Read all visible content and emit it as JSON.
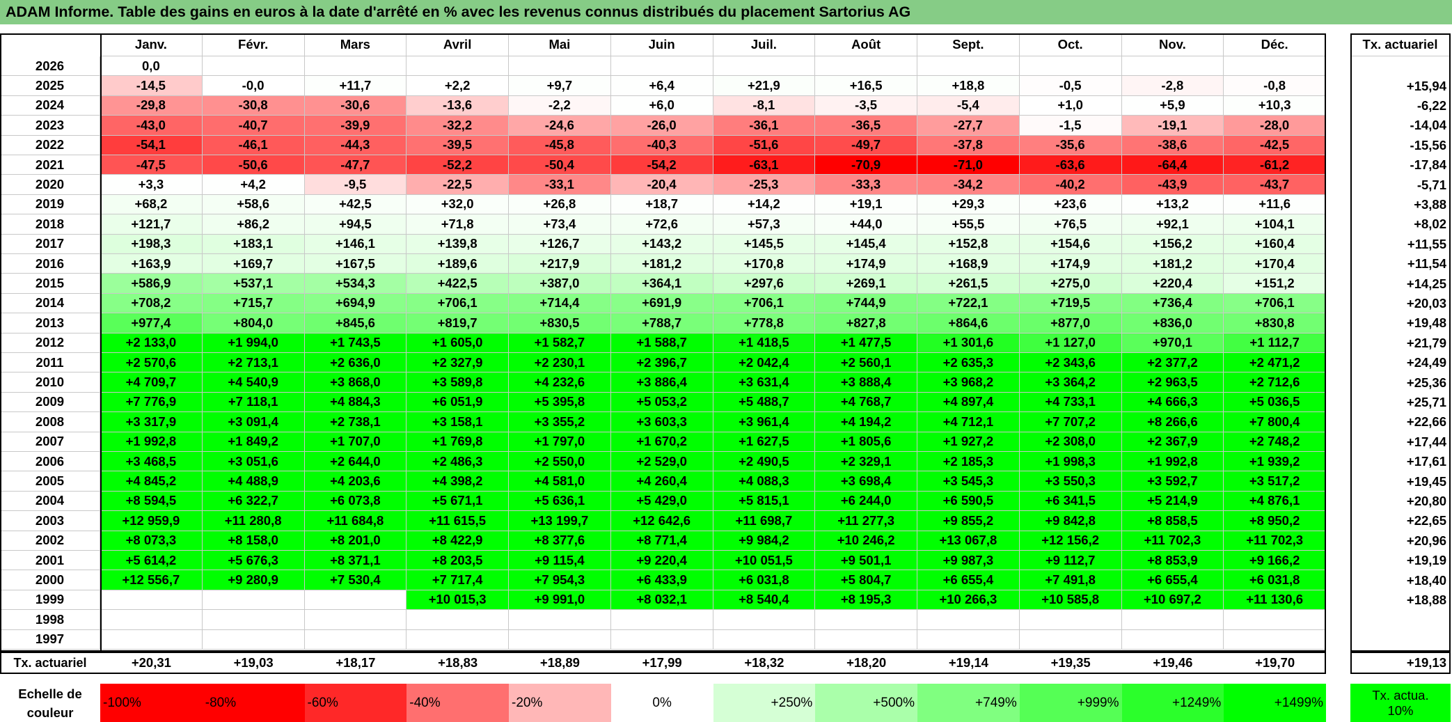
{
  "title": "ADAM Informe. Table des gains en euros à la date d'arrêté en % avec les revenus connus distribués du placement Sartorius AG",
  "table": {
    "months": [
      "Janv.",
      "Févr.",
      "Mars",
      "Avril",
      "Mai",
      "Juin",
      "Juil.",
      "Août",
      "Sept.",
      "Oct.",
      "Nov.",
      "Déc."
    ],
    "rate_header": "Tx. actuariel",
    "rows": [
      {
        "year": "2026",
        "values": [
          "0,0",
          null,
          null,
          null,
          null,
          null,
          null,
          null,
          null,
          null,
          null,
          null
        ],
        "rate": null
      },
      {
        "year": "2025",
        "values": [
          "-14,5",
          "-0,0",
          "+11,7",
          "+2,2",
          "+9,7",
          "+6,4",
          "+21,9",
          "+16,5",
          "+18,8",
          "-0,5",
          "-2,8",
          "-0,8"
        ],
        "rate": "+15,94"
      },
      {
        "year": "2024",
        "values": [
          "-29,8",
          "-30,8",
          "-30,6",
          "-13,6",
          "-2,2",
          "+6,0",
          "-8,1",
          "-3,5",
          "-5,4",
          "+1,0",
          "+5,9",
          "+10,3"
        ],
        "rate": "-6,22"
      },
      {
        "year": "2023",
        "values": [
          "-43,0",
          "-40,7",
          "-39,9",
          "-32,2",
          "-24,6",
          "-26,0",
          "-36,1",
          "-36,5",
          "-27,7",
          "-1,5",
          "-19,1",
          "-28,0"
        ],
        "rate": "-14,04"
      },
      {
        "year": "2022",
        "values": [
          "-54,1",
          "-46,1",
          "-44,3",
          "-39,5",
          "-45,8",
          "-40,3",
          "-51,6",
          "-49,7",
          "-37,8",
          "-35,6",
          "-38,6",
          "-42,5"
        ],
        "rate": "-15,56"
      },
      {
        "year": "2021",
        "values": [
          "-47,5",
          "-50,6",
          "-47,7",
          "-52,2",
          "-50,4",
          "-54,2",
          "-63,1",
          "-70,9",
          "-71,0",
          "-63,6",
          "-64,4",
          "-61,2"
        ],
        "rate": "-17,84"
      },
      {
        "year": "2020",
        "values": [
          "+3,3",
          "+4,2",
          "-9,5",
          "-22,5",
          "-33,1",
          "-20,4",
          "-25,3",
          "-33,3",
          "-34,2",
          "-40,2",
          "-43,9",
          "-43,7"
        ],
        "rate": "-5,71"
      },
      {
        "year": "2019",
        "values": [
          "+68,2",
          "+58,6",
          "+42,5",
          "+32,0",
          "+26,8",
          "+18,7",
          "+14,2",
          "+19,1",
          "+29,3",
          "+23,6",
          "+13,2",
          "+11,6"
        ],
        "rate": "+3,88"
      },
      {
        "year": "2018",
        "values": [
          "+121,7",
          "+86,2",
          "+94,5",
          "+71,8",
          "+73,4",
          "+72,6",
          "+57,3",
          "+44,0",
          "+55,5",
          "+76,5",
          "+92,1",
          "+104,1"
        ],
        "rate": "+8,02"
      },
      {
        "year": "2017",
        "values": [
          "+198,3",
          "+183,1",
          "+146,1",
          "+139,8",
          "+126,7",
          "+143,2",
          "+145,5",
          "+145,4",
          "+152,8",
          "+154,6",
          "+156,2",
          "+160,4"
        ],
        "rate": "+11,55"
      },
      {
        "year": "2016",
        "values": [
          "+163,9",
          "+169,7",
          "+167,5",
          "+189,6",
          "+217,9",
          "+181,2",
          "+170,8",
          "+174,9",
          "+168,9",
          "+174,9",
          "+181,2",
          "+170,4"
        ],
        "rate": "+11,54"
      },
      {
        "year": "2015",
        "values": [
          "+586,9",
          "+537,1",
          "+534,3",
          "+422,5",
          "+387,0",
          "+364,1",
          "+297,6",
          "+269,1",
          "+261,5",
          "+275,0",
          "+220,4",
          "+151,2"
        ],
        "rate": "+14,25"
      },
      {
        "year": "2014",
        "values": [
          "+708,2",
          "+715,7",
          "+694,9",
          "+706,1",
          "+714,4",
          "+691,9",
          "+706,1",
          "+744,9",
          "+722,1",
          "+719,5",
          "+736,4",
          "+706,1"
        ],
        "rate": "+20,03"
      },
      {
        "year": "2013",
        "values": [
          "+977,4",
          "+804,0",
          "+845,6",
          "+819,7",
          "+830,5",
          "+788,7",
          "+778,8",
          "+827,8",
          "+864,6",
          "+877,0",
          "+836,0",
          "+830,8"
        ],
        "rate": "+19,48"
      },
      {
        "year": "2012",
        "values": [
          "+2 133,0",
          "+1 994,0",
          "+1 743,5",
          "+1 605,0",
          "+1 582,7",
          "+1 588,7",
          "+1 418,5",
          "+1 477,5",
          "+1 301,6",
          "+1 127,0",
          "+970,1",
          "+1 112,7"
        ],
        "rate": "+21,79"
      },
      {
        "year": "2011",
        "values": [
          "+2 570,6",
          "+2 713,1",
          "+2 636,0",
          "+2 327,9",
          "+2 230,1",
          "+2 396,7",
          "+2 042,4",
          "+2 560,1",
          "+2 635,3",
          "+2 343,6",
          "+2 377,2",
          "+2 471,2"
        ],
        "rate": "+24,49"
      },
      {
        "year": "2010",
        "values": [
          "+4 709,7",
          "+4 540,9",
          "+3 868,0",
          "+3 589,8",
          "+4 232,6",
          "+3 886,4",
          "+3 631,4",
          "+3 888,4",
          "+3 968,2",
          "+3 364,2",
          "+2 963,5",
          "+2 712,6"
        ],
        "rate": "+25,36"
      },
      {
        "year": "2009",
        "values": [
          "+7 776,9",
          "+7 118,1",
          "+4 884,3",
          "+6 051,9",
          "+5 395,8",
          "+5 053,2",
          "+5 488,7",
          "+4 768,7",
          "+4 897,4",
          "+4 733,1",
          "+4 666,3",
          "+5 036,5"
        ],
        "rate": "+25,71"
      },
      {
        "year": "2008",
        "values": [
          "+3 317,9",
          "+3 091,4",
          "+2 738,1",
          "+3 158,1",
          "+3 355,2",
          "+3 603,3",
          "+3 961,4",
          "+4 194,2",
          "+4 712,1",
          "+7 707,2",
          "+8 266,6",
          "+7 800,4"
        ],
        "rate": "+22,66"
      },
      {
        "year": "2007",
        "values": [
          "+1 992,8",
          "+1 849,2",
          "+1 707,0",
          "+1 769,8",
          "+1 797,0",
          "+1 670,2",
          "+1 627,5",
          "+1 805,6",
          "+1 927,2",
          "+2 308,0",
          "+2 367,9",
          "+2 748,2"
        ],
        "rate": "+17,44"
      },
      {
        "year": "2006",
        "values": [
          "+3 468,5",
          "+3 051,6",
          "+2 644,0",
          "+2 486,3",
          "+2 550,0",
          "+2 529,0",
          "+2 490,5",
          "+2 329,1",
          "+2 185,3",
          "+1 998,3",
          "+1 992,8",
          "+1 939,2"
        ],
        "rate": "+17,61"
      },
      {
        "year": "2005",
        "values": [
          "+4 845,2",
          "+4 488,9",
          "+4 203,6",
          "+4 398,2",
          "+4 581,0",
          "+4 260,4",
          "+4 088,3",
          "+3 698,4",
          "+3 545,3",
          "+3 550,3",
          "+3 592,7",
          "+3 517,2"
        ],
        "rate": "+19,45"
      },
      {
        "year": "2004",
        "values": [
          "+8 594,5",
          "+6 322,7",
          "+6 073,8",
          "+5 671,1",
          "+5 636,1",
          "+5 429,0",
          "+5 815,1",
          "+6 244,0",
          "+6 590,5",
          "+6 341,5",
          "+5 214,9",
          "+4 876,1"
        ],
        "rate": "+20,80"
      },
      {
        "year": "2003",
        "values": [
          "+12 959,9",
          "+11 280,8",
          "+11 684,8",
          "+11 615,5",
          "+13 199,7",
          "+12 642,6",
          "+11 698,7",
          "+11 277,3",
          "+9 855,2",
          "+9 842,8",
          "+8 858,5",
          "+8 950,2"
        ],
        "rate": "+22,65"
      },
      {
        "year": "2002",
        "values": [
          "+8 073,3",
          "+8 158,0",
          "+8 201,0",
          "+8 422,9",
          "+8 377,6",
          "+8 771,4",
          "+9 984,2",
          "+10 246,2",
          "+13 067,8",
          "+12 156,2",
          "+11 702,3",
          "+11 702,3"
        ],
        "rate": "+20,96"
      },
      {
        "year": "2001",
        "values": [
          "+5 614,2",
          "+5 676,3",
          "+8 371,1",
          "+8 203,5",
          "+9 115,4",
          "+9 220,4",
          "+10 051,5",
          "+9 501,1",
          "+9 987,3",
          "+9 112,7",
          "+8 853,9",
          "+9 166,2"
        ],
        "rate": "+19,19"
      },
      {
        "year": "2000",
        "values": [
          "+12 556,7",
          "+9 280,9",
          "+7 530,4",
          "+7 717,4",
          "+7 954,3",
          "+6 433,9",
          "+6 031,8",
          "+5 804,7",
          "+6 655,4",
          "+7 491,8",
          "+6 655,4",
          "+6 031,8"
        ],
        "rate": "+18,40"
      },
      {
        "year": "1999",
        "values": [
          null,
          null,
          null,
          "+10 015,3",
          "+9 991,0",
          "+8 032,1",
          "+8 540,4",
          "+8 195,3",
          "+10 266,3",
          "+10 585,8",
          "+10 697,2",
          "+11 130,6"
        ],
        "rate": "+18,88"
      },
      {
        "year": "1998",
        "values": [
          null,
          null,
          null,
          null,
          null,
          null,
          null,
          null,
          null,
          null,
          null,
          null
        ],
        "rate": null
      },
      {
        "year": "1997",
        "values": [
          null,
          null,
          null,
          null,
          null,
          null,
          null,
          null,
          null,
          null,
          null,
          null
        ],
        "rate": null
      }
    ],
    "summary": {
      "label": "Tx. actuariel",
      "values": [
        "+20,31",
        "+19,03",
        "+18,17",
        "+18,83",
        "+18,89",
        "+17,99",
        "+18,32",
        "+18,20",
        "+19,14",
        "+19,35",
        "+19,46",
        "+19,70"
      ],
      "rate": "+19,13"
    }
  },
  "legend": {
    "label": "Echelle de couleur",
    "scale": [
      "-100%",
      "-80%",
      "-60%",
      "-40%",
      "-20%",
      "0%",
      "+250%",
      "+500%",
      "+749%",
      "+999%",
      "+1249%",
      "+1499%"
    ],
    "rate_label": "Tx. actua. 10%"
  }
}
